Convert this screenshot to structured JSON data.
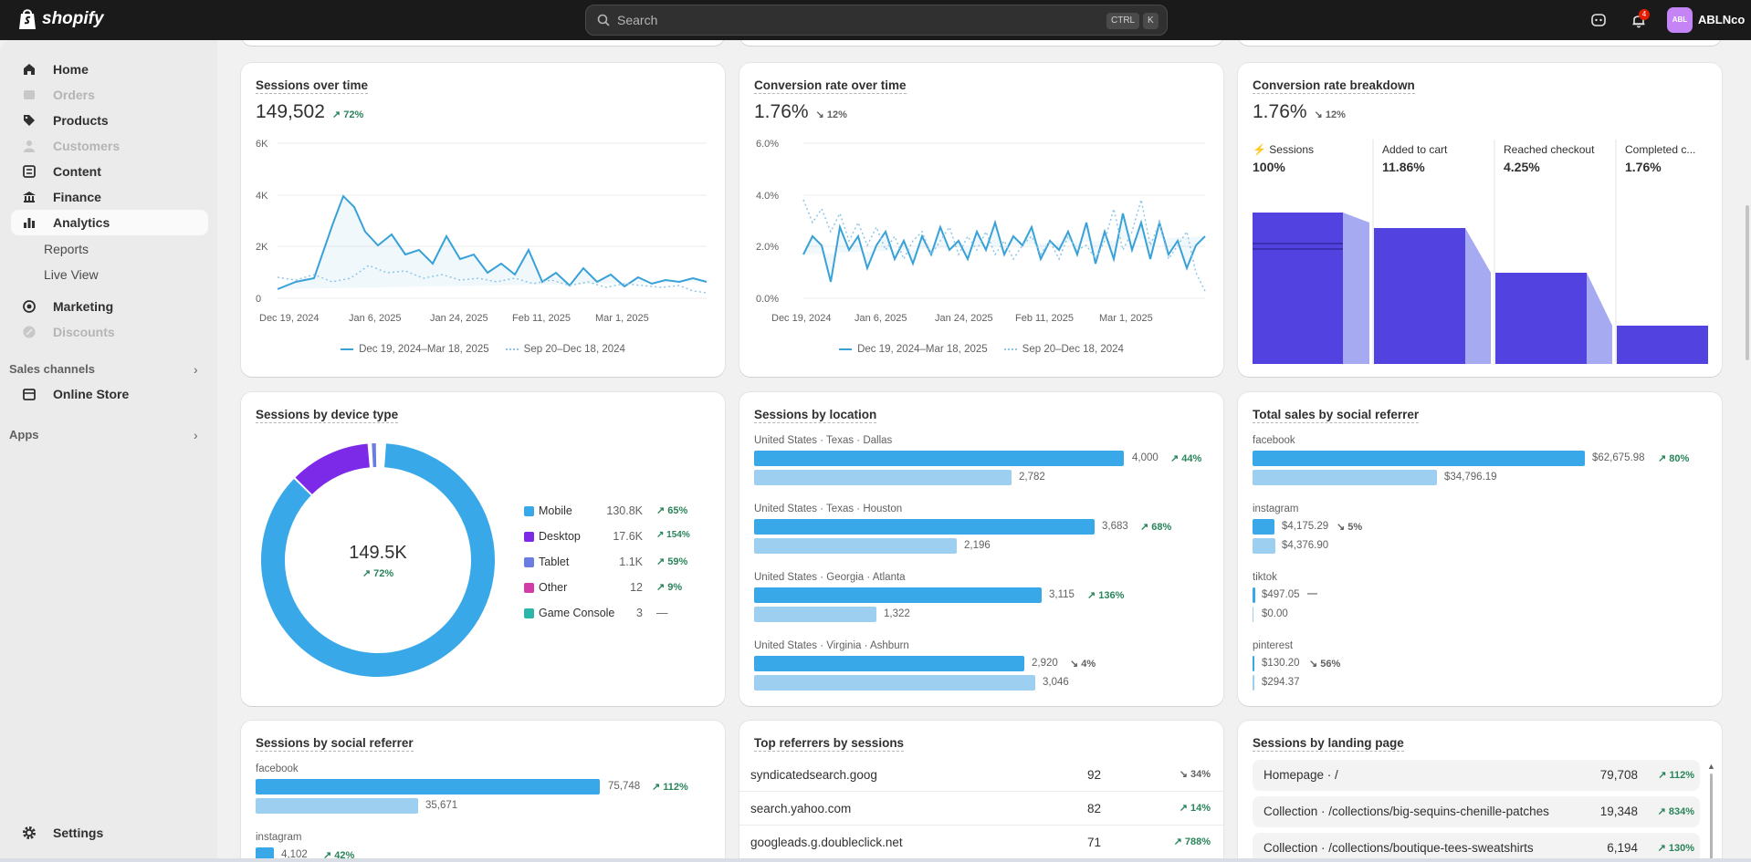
{
  "topbar": {
    "brand": "shopify",
    "search_placeholder": "Search",
    "kbd_ctrl": "CTRL",
    "kbd_k": "K",
    "notifications_count": "4",
    "avatar_initials": "ABL",
    "store_name": "ABLNco"
  },
  "sidebar": {
    "items": [
      {
        "label": "Home",
        "icon": "home-icon",
        "disabled": false
      },
      {
        "label": "Orders",
        "icon": "inbox-icon",
        "disabled": true
      },
      {
        "label": "Products",
        "icon": "tag-icon",
        "disabled": false
      },
      {
        "label": "Customers",
        "icon": "person-icon",
        "disabled": true
      },
      {
        "label": "Content",
        "icon": "content-icon",
        "disabled": false
      },
      {
        "label": "Finance",
        "icon": "bank-icon",
        "disabled": false
      },
      {
        "label": "Analytics",
        "icon": "bar-chart-icon",
        "disabled": false,
        "active": true
      }
    ],
    "sub_items": [
      "Reports",
      "Live View"
    ],
    "items2": [
      {
        "label": "Marketing",
        "icon": "target-icon",
        "disabled": false
      },
      {
        "label": "Discounts",
        "icon": "discount-icon",
        "disabled": true
      }
    ],
    "sales_channels_label": "Sales channels",
    "online_store_label": "Online Store",
    "apps_label": "Apps",
    "settings_label": "Settings"
  },
  "sessions_over_time": {
    "title": "Sessions over time",
    "value": "149,502",
    "change": "72%",
    "y_ticks": [
      "6K",
      "4K",
      "2K",
      "0"
    ],
    "x_ticks": [
      "Dec 19, 2024",
      "Jan 6, 2025",
      "Jan 24, 2025",
      "Feb 11, 2025",
      "Mar 1, 2025"
    ],
    "legend_current": "Dec 19, 2024–Mar 18, 2025",
    "legend_previous": "Sep 20–Dec 18, 2024"
  },
  "conversion_rate_over_time": {
    "title": "Conversion rate over time",
    "value": "1.76%",
    "change": "12%",
    "y_ticks": [
      "6.0%",
      "4.0%",
      "2.0%",
      "0.0%"
    ],
    "x_ticks": [
      "Dec 19, 2024",
      "Jan 6, 2025",
      "Jan 24, 2025",
      "Feb 11, 2025",
      "Mar 1, 2025"
    ],
    "legend_current": "Dec 19, 2024–Mar 18, 2025",
    "legend_previous": "Sep 20–Dec 18, 2024"
  },
  "conversion_breakdown": {
    "title": "Conversion rate breakdown",
    "value": "1.76%",
    "change": "12%",
    "steps": [
      {
        "label": "Sessions",
        "value": "100%"
      },
      {
        "label": "Added to cart",
        "value": "11.86%"
      },
      {
        "label": "Reached checkout",
        "value": "4.25%"
      },
      {
        "label": "Completed c...",
        "value": "1.76%"
      }
    ]
  },
  "device_type": {
    "title": "Sessions by device type",
    "total": "149.5K",
    "change": "72%",
    "rows": [
      {
        "name": "Mobile",
        "count": "130.8K",
        "change": "65%",
        "color": "#38a8e8"
      },
      {
        "name": "Desktop",
        "count": "17.6K",
        "change": "154%",
        "color": "#7d2ae8"
      },
      {
        "name": "Tablet",
        "count": "1.1K",
        "change": "59%",
        "color": "#6b7ee0"
      },
      {
        "name": "Other",
        "count": "12",
        "change": "9%",
        "color": "#d13ca8"
      },
      {
        "name": "Game Console",
        "count": "3",
        "change": "—",
        "color": "#2cb5a8"
      }
    ]
  },
  "location": {
    "title": "Sessions by location",
    "rows": [
      {
        "name": "United States · Texas · Dallas",
        "cur": "4,000",
        "prev": "2,782",
        "change": "44%",
        "dir": "up"
      },
      {
        "name": "United States · Texas · Houston",
        "cur": "3,683",
        "prev": "2,196",
        "change": "68%",
        "dir": "up"
      },
      {
        "name": "United States · Georgia · Atlanta",
        "cur": "3,115",
        "prev": "1,322",
        "change": "136%",
        "dir": "up"
      },
      {
        "name": "United States · Virginia · Ashburn",
        "cur": "2,920",
        "prev": "3,046",
        "change": "4%",
        "dir": "down"
      }
    ]
  },
  "social_sales": {
    "title": "Total sales by social referrer",
    "rows": [
      {
        "name": "facebook",
        "cur": "$62,675.98",
        "prev": "$34,796.19",
        "change": "80%",
        "dir": "up"
      },
      {
        "name": "instagram",
        "cur": "$4,175.29",
        "prev": "$4,376.90",
        "change": "5%",
        "dir": "down"
      },
      {
        "name": "tiktok",
        "cur": "$497.05",
        "prev": "$0.00",
        "change": "—",
        "dir": "flat"
      },
      {
        "name": "pinterest",
        "cur": "$130.20",
        "prev": "$294.37",
        "change": "56%",
        "dir": "down"
      }
    ]
  },
  "social_sessions": {
    "title": "Sessions by social referrer",
    "rows": [
      {
        "name": "facebook",
        "cur": "75,748",
        "prev": "35,671",
        "change": "112%",
        "dir": "up"
      },
      {
        "name": "instagram",
        "cur": "4,102",
        "change": "42%",
        "dir": "up"
      }
    ]
  },
  "top_referrers": {
    "title": "Top referrers by sessions",
    "rows": [
      {
        "name": "syndicatedsearch.goog",
        "count": "92",
        "change": "34%",
        "dir": "down"
      },
      {
        "name": "search.yahoo.com",
        "count": "82",
        "change": "14%",
        "dir": "up"
      },
      {
        "name": "googleads.g.doubleclick.net",
        "count": "71",
        "change": "788%",
        "dir": "up"
      }
    ]
  },
  "landing_page": {
    "title": "Sessions by landing page",
    "rows": [
      {
        "name": "Homepage · /",
        "count": "79,708",
        "change": "112%"
      },
      {
        "name": "Collection · /collections/big-sequins-chenille-patches",
        "count": "19,348",
        "change": "834%"
      },
      {
        "name": "Collection · /collections/boutique-tees-sweatshirts",
        "count": "6,194",
        "change": "130%"
      }
    ]
  }
}
